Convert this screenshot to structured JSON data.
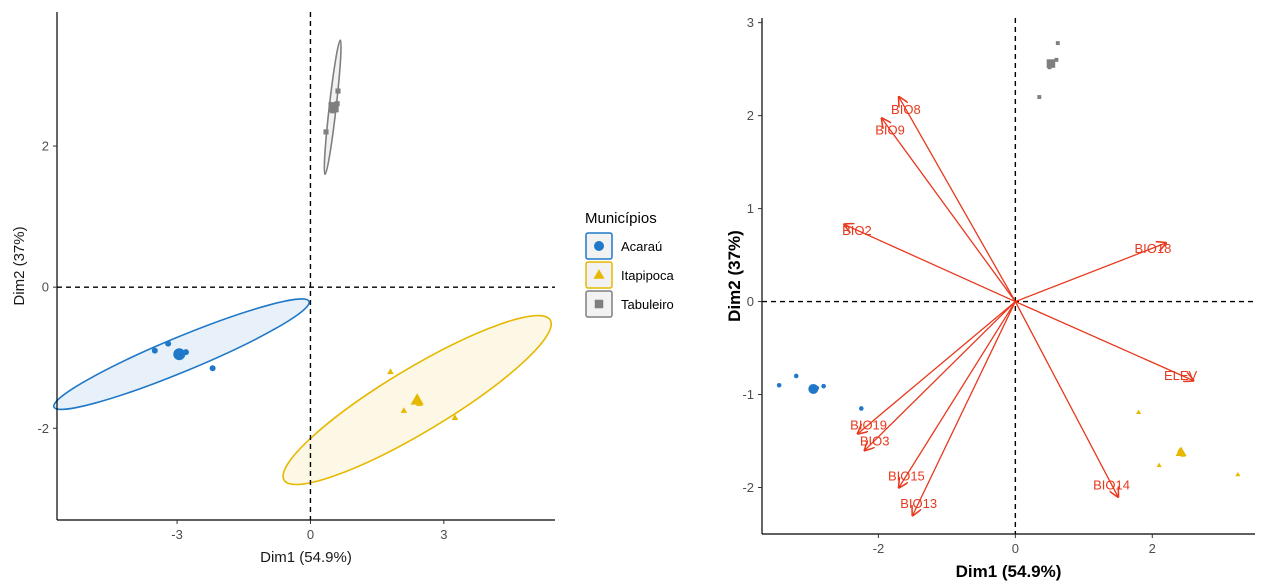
{
  "chart_data": [
    {
      "type": "scatter",
      "subtype": "pca-individuals-with-confidence-ellipses",
      "xlabel": "Dim1 (54.9%)",
      "ylabel": "Dim2 (37%)",
      "xlim": [
        -5.7,
        5.5
      ],
      "ylim": [
        -3.3,
        3.9
      ],
      "xticks": [
        -3,
        0,
        3
      ],
      "yticks": [
        -2,
        0,
        2
      ],
      "grid": false,
      "reference_lines": {
        "x": 0,
        "y": 0,
        "style": "dashed"
      },
      "legend": {
        "title": "Municípios",
        "placement": "right",
        "entries": [
          {
            "label": "Acaraú",
            "shape": "circle",
            "color": "#1f78c8"
          },
          {
            "label": "Itapipoca",
            "shape": "triangle",
            "color": "#e6b800"
          },
          {
            "label": "Tabuleiro",
            "shape": "square",
            "color": "#7f7f7f"
          }
        ]
      },
      "series": [
        {
          "name": "Acaraú",
          "shape": "circle",
          "color": "#1f78c8",
          "points": [
            [
              -3.5,
              -0.9
            ],
            [
              -3.2,
              -0.8
            ],
            [
              -2.9,
              -0.93
            ],
            [
              -2.8,
              -0.92
            ],
            [
              -2.2,
              -1.15
            ]
          ],
          "centroid": [
            -2.95,
            -0.95
          ],
          "ellipse": {
            "center": [
              -2.9,
              -0.95
            ],
            "semi_axes": [
              4.8,
              0.6
            ],
            "angle_deg": -22.5
          }
        },
        {
          "name": "Itapipoca",
          "shape": "triangle",
          "color": "#e6b800",
          "points": [
            [
              1.8,
              -1.2
            ],
            [
              2.1,
              -1.75
            ],
            [
              2.4,
              -1.6
            ],
            [
              2.45,
              -1.65
            ],
            [
              3.25,
              -1.85
            ]
          ],
          "centroid": [
            2.4,
            -1.6
          ],
          "ellipse": {
            "center": [
              2.4,
              -1.6
            ],
            "semi_axes": [
              5.4,
              1.1
            ],
            "angle_deg": -31
          }
        },
        {
          "name": "Tabuleiro",
          "shape": "square",
          "color": "#7f7f7f",
          "points": [
            [
              0.35,
              2.2
            ],
            [
              0.5,
              2.55
            ],
            [
              0.6,
              2.6
            ],
            [
              0.62,
              2.78
            ],
            [
              0.5,
              2.5
            ]
          ],
          "centroid": [
            0.52,
            2.55
          ],
          "ellipse": {
            "center": [
              0.5,
              2.55
            ],
            "semi_axes": [
              2.35,
              0.12
            ],
            "angle_deg": -83.5
          }
        }
      ]
    },
    {
      "type": "scatter",
      "subtype": "pca-biplot",
      "xlabel": "Dim1 (54.9%)",
      "ylabel": "Dim2 (37%)",
      "xlim": [
        -3.7,
        3.5
      ],
      "ylim": [
        -2.5,
        3.05
      ],
      "xticks": [
        -2,
        0,
        2
      ],
      "yticks": [
        -2,
        -1,
        0,
        1,
        2,
        3
      ],
      "grid": false,
      "reference_lines": {
        "x": 0,
        "y": 0,
        "style": "dashed"
      },
      "arrow_color": "#e8391e",
      "arrows": [
        {
          "label": "BIO8",
          "x": -1.7,
          "y": 2.2
        },
        {
          "label": "BIO9",
          "x": -1.95,
          "y": 1.97
        },
        {
          "label": "BIO2",
          "x": -2.5,
          "y": 0.83
        },
        {
          "label": "BIO18",
          "x": 2.2,
          "y": 0.63
        },
        {
          "label": "ELEV",
          "x": 2.6,
          "y": -0.85
        },
        {
          "label": "BIO19",
          "x": -2.3,
          "y": -1.42
        },
        {
          "label": "BIO3",
          "x": -2.2,
          "y": -1.6
        },
        {
          "label": "BIO15",
          "x": -1.7,
          "y": -2.0
        },
        {
          "label": "BIO13",
          "x": -1.5,
          "y": -2.3
        },
        {
          "label": "BIO14",
          "x": 1.5,
          "y": -2.1
        }
      ],
      "series": [
        {
          "name": "Acaraú",
          "shape": "circle",
          "color": "#1f78c8",
          "points": [
            [
              -3.45,
              -0.9
            ],
            [
              -3.2,
              -0.8
            ],
            [
              -2.9,
              -0.93
            ],
            [
              -2.8,
              -0.91
            ],
            [
              -2.25,
              -1.15
            ]
          ],
          "centroid": [
            -2.95,
            -0.94
          ]
        },
        {
          "name": "Itapipoca",
          "shape": "triangle",
          "color": "#e6b800",
          "points": [
            [
              1.8,
              -1.19
            ],
            [
              2.1,
              -1.76
            ],
            [
              2.4,
              -1.6
            ],
            [
              2.45,
              -1.65
            ],
            [
              3.25,
              -1.86
            ]
          ],
          "centroid": [
            2.42,
            -1.62
          ]
        },
        {
          "name": "Tabuleiro",
          "shape": "square",
          "color": "#7f7f7f",
          "points": [
            [
              0.35,
              2.2
            ],
            [
              0.5,
              2.55
            ],
            [
              0.6,
              2.6
            ],
            [
              0.62,
              2.78
            ],
            [
              0.5,
              2.52
            ]
          ],
          "centroid": [
            0.52,
            2.56
          ]
        }
      ]
    }
  ]
}
